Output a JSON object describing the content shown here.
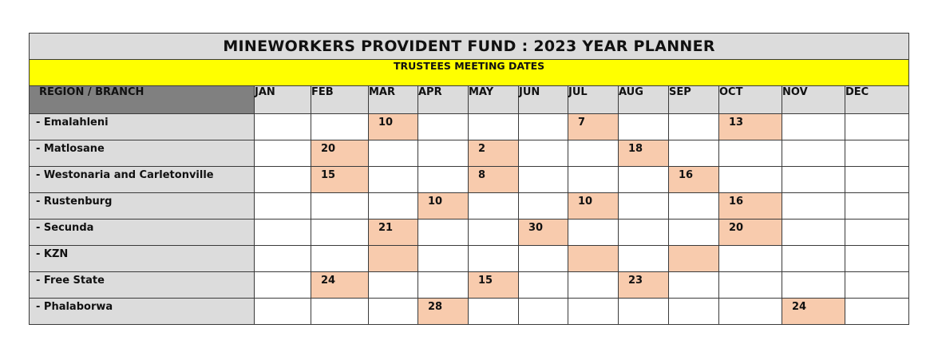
{
  "title": "MINEWORKERS PROVIDENT FUND : 2023 YEAR PLANNER",
  "subtitle": "TRUSTEES MEETING DATES",
  "region_header": "REGION / BRANCH",
  "months": [
    "JAN",
    "FEB",
    "MAR",
    "APR",
    "MAY",
    "JUN",
    "JUL",
    "AUG",
    "SEP",
    "OCT",
    "NOV",
    "DEC"
  ],
  "highlight_color": "#f8cbad",
  "rows": [
    {
      "region": "- Emalahleni",
      "cells": [
        {
          "v": "",
          "hl": false
        },
        {
          "v": "",
          "hl": false
        },
        {
          "v": "10",
          "hl": true
        },
        {
          "v": "",
          "hl": false
        },
        {
          "v": "",
          "hl": false
        },
        {
          "v": "",
          "hl": false
        },
        {
          "v": "7",
          "hl": true
        },
        {
          "v": "",
          "hl": false
        },
        {
          "v": "",
          "hl": false
        },
        {
          "v": "13",
          "hl": true
        },
        {
          "v": "",
          "hl": false
        },
        {
          "v": "",
          "hl": false
        }
      ]
    },
    {
      "region": "- Matlosane",
      "cells": [
        {
          "v": "",
          "hl": false
        },
        {
          "v": "20",
          "hl": true
        },
        {
          "v": "",
          "hl": false
        },
        {
          "v": "",
          "hl": false
        },
        {
          "v": "2",
          "hl": true
        },
        {
          "v": "",
          "hl": false
        },
        {
          "v": "",
          "hl": false
        },
        {
          "v": "18",
          "hl": true
        },
        {
          "v": "",
          "hl": false
        },
        {
          "v": "",
          "hl": false
        },
        {
          "v": "",
          "hl": false
        },
        {
          "v": "",
          "hl": false
        }
      ]
    },
    {
      "region": "- Westonaria and Carletonville",
      "cells": [
        {
          "v": "",
          "hl": false
        },
        {
          "v": "15",
          "hl": true
        },
        {
          "v": "",
          "hl": false
        },
        {
          "v": "",
          "hl": false
        },
        {
          "v": "8",
          "hl": true
        },
        {
          "v": "",
          "hl": false
        },
        {
          "v": "",
          "hl": false
        },
        {
          "v": "",
          "hl": false
        },
        {
          "v": "16",
          "hl": true
        },
        {
          "v": "",
          "hl": false
        },
        {
          "v": "",
          "hl": false
        },
        {
          "v": "",
          "hl": false
        }
      ]
    },
    {
      "region": "- Rustenburg",
      "cells": [
        {
          "v": "",
          "hl": false
        },
        {
          "v": "",
          "hl": false
        },
        {
          "v": "",
          "hl": false
        },
        {
          "v": "10",
          "hl": true
        },
        {
          "v": "",
          "hl": false
        },
        {
          "v": "",
          "hl": false
        },
        {
          "v": "10",
          "hl": true
        },
        {
          "v": "",
          "hl": false
        },
        {
          "v": "",
          "hl": false
        },
        {
          "v": "16",
          "hl": true
        },
        {
          "v": "",
          "hl": false
        },
        {
          "v": "",
          "hl": false
        }
      ]
    },
    {
      "region": "- Secunda",
      "cells": [
        {
          "v": "",
          "hl": false
        },
        {
          "v": "",
          "hl": false
        },
        {
          "v": "21",
          "hl": true
        },
        {
          "v": "",
          "hl": false
        },
        {
          "v": "",
          "hl": false
        },
        {
          "v": "30",
          "hl": true
        },
        {
          "v": "",
          "hl": false
        },
        {
          "v": "",
          "hl": false
        },
        {
          "v": "",
          "hl": false
        },
        {
          "v": "20",
          "hl": true
        },
        {
          "v": "",
          "hl": false
        },
        {
          "v": "",
          "hl": false
        }
      ]
    },
    {
      "region": "- KZN",
      "cells": [
        {
          "v": "",
          "hl": false
        },
        {
          "v": "",
          "hl": false
        },
        {
          "v": "",
          "hl": true
        },
        {
          "v": "",
          "hl": false
        },
        {
          "v": "",
          "hl": false
        },
        {
          "v": "",
          "hl": false
        },
        {
          "v": "",
          "hl": true
        },
        {
          "v": "",
          "hl": false
        },
        {
          "v": "",
          "hl": true
        },
        {
          "v": "",
          "hl": false
        },
        {
          "v": "",
          "hl": false
        },
        {
          "v": "",
          "hl": false
        }
      ]
    },
    {
      "region": "- Free State",
      "cells": [
        {
          "v": "",
          "hl": false
        },
        {
          "v": "24",
          "hl": true
        },
        {
          "v": "",
          "hl": false
        },
        {
          "v": "",
          "hl": false
        },
        {
          "v": "15",
          "hl": true
        },
        {
          "v": "",
          "hl": false
        },
        {
          "v": "",
          "hl": false
        },
        {
          "v": "23",
          "hl": true
        },
        {
          "v": "",
          "hl": false
        },
        {
          "v": "",
          "hl": false
        },
        {
          "v": "",
          "hl": false
        },
        {
          "v": "",
          "hl": false
        }
      ]
    },
    {
      "region": "- Phalaborwa",
      "cells": [
        {
          "v": "",
          "hl": false
        },
        {
          "v": "",
          "hl": false
        },
        {
          "v": "",
          "hl": false
        },
        {
          "v": "28",
          "hl": true
        },
        {
          "v": "",
          "hl": false
        },
        {
          "v": "",
          "hl": false
        },
        {
          "v": "",
          "hl": false
        },
        {
          "v": "",
          "hl": false
        },
        {
          "v": "",
          "hl": false
        },
        {
          "v": "",
          "hl": false
        },
        {
          "v": "24",
          "hl": true
        },
        {
          "v": "",
          "hl": false
        }
      ]
    }
  ]
}
